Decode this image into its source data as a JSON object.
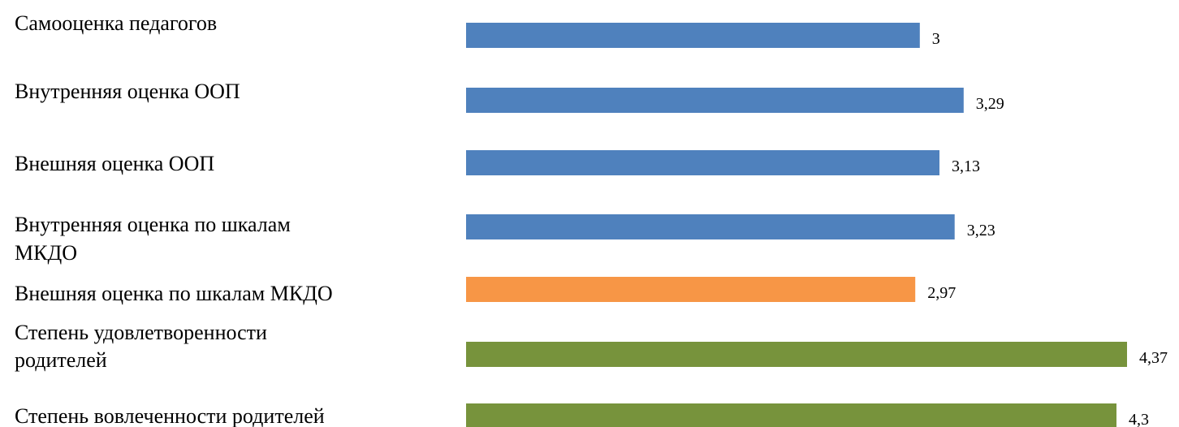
{
  "chart_data": {
    "type": "bar",
    "orientation": "horizontal",
    "categories": [
      [
        "Самооценка педагогов"
      ],
      [
        "Внутренняя оценка ООП"
      ],
      [
        "Внешняя оценка ООП"
      ],
      [
        "Внутренняя оценка по шкалам",
        "МКДО"
      ],
      [
        "Внешняя оценка по шкалам МКДО"
      ],
      [
        "Степень удовлетворенности",
        "родителей"
      ],
      [
        "Степень вовлеченности родителей"
      ]
    ],
    "values": [
      3,
      3.29,
      3.13,
      3.23,
      2.97,
      4.37,
      4.3
    ],
    "value_labels": [
      "3",
      "3,29",
      "3,13",
      "3,23",
      "2,97",
      "4,37",
      "4,3"
    ],
    "bar_colors": [
      "#4F81BD",
      "#4F81BD",
      "#4F81BD",
      "#4F81BD",
      "#F79646",
      "#77933C",
      "#77933C"
    ],
    "xlim": [
      0,
      4.37
    ],
    "title": "",
    "xlabel": "",
    "ylabel": "",
    "grid": false,
    "legend": "none"
  }
}
